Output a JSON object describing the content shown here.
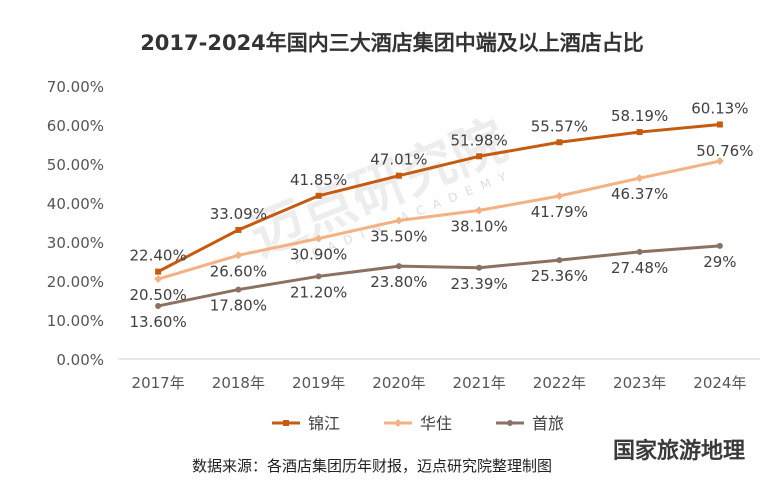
{
  "chart_data": {
    "type": "line",
    "title": "2017-2024年国内三大酒店集团中端及以上酒店占比",
    "categories": [
      "2017年",
      "2018年",
      "2019年",
      "2020年",
      "2021年",
      "2022年",
      "2023年",
      "2024年"
    ],
    "y_ticks": [
      "0.00%",
      "10.00%",
      "20.00%",
      "30.00%",
      "40.00%",
      "50.00%",
      "60.00%",
      "70.00%"
    ],
    "ylim": [
      0,
      70
    ],
    "y_unit": "%",
    "grid": false,
    "legend_position": "bottom",
    "series": [
      {
        "name": "锦江",
        "color": "#c55a11",
        "marker": "square",
        "values": [
          22.4,
          33.09,
          41.85,
          47.01,
          51.98,
          55.57,
          58.19,
          60.13
        ],
        "labels": [
          "22.40%",
          "33.09%",
          "41.85%",
          "47.01%",
          "51.98%",
          "55.57%",
          "58.19%",
          "60.13%"
        ]
      },
      {
        "name": "华住",
        "color": "#f4b183",
        "marker": "diamond",
        "values": [
          20.5,
          26.6,
          30.9,
          35.5,
          38.1,
          41.79,
          46.37,
          50.76
        ],
        "labels": [
          "20.50%",
          "26.60%",
          "30.90%",
          "35.50%",
          "38.10%",
          "41.79%",
          "46.37%",
          "50.76%"
        ]
      },
      {
        "name": "首旅",
        "color": "#8c7163",
        "marker": "circle",
        "values": [
          13.6,
          17.8,
          21.2,
          23.8,
          23.39,
          25.36,
          27.48,
          29
        ],
        "labels": [
          "13.60%",
          "17.80%",
          "21.20%",
          "23.80%",
          "23.39%",
          "25.36%",
          "27.48%",
          "29%"
        ]
      }
    ]
  },
  "watermark": {
    "main": "迈点研究院",
    "sub": "MEADIN ACADEMY"
  },
  "source_note": "数据来源：各酒店集团历年财报，迈点研究院整理制图",
  "corner_mark": "国家旅游地理"
}
